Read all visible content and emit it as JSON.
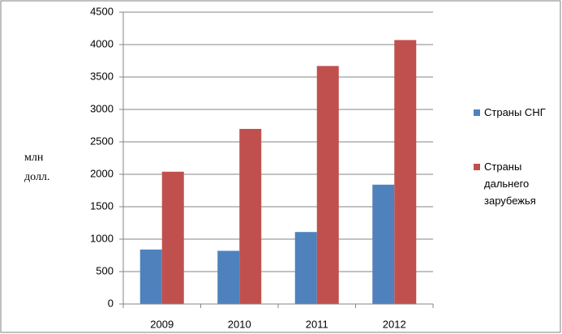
{
  "chart_data": {
    "type": "bar",
    "ylabel": "млн долл.",
    "categories": [
      "2009",
      "2010",
      "2011",
      "2012"
    ],
    "series": [
      {
        "name": "Страны СНГ",
        "color": "#4f81bd",
        "values": [
          840,
          820,
          1110,
          1840
        ]
      },
      {
        "name": "Страны дальнего зарубежья",
        "color": "#c0504d",
        "values": [
          2040,
          2700,
          3670,
          4070
        ]
      }
    ],
    "ylim": [
      0,
      4500
    ],
    "yticks": [
      0,
      500,
      1000,
      1500,
      2000,
      2500,
      3000,
      3500,
      4000,
      4500
    ],
    "grid": true,
    "legend": "right"
  }
}
